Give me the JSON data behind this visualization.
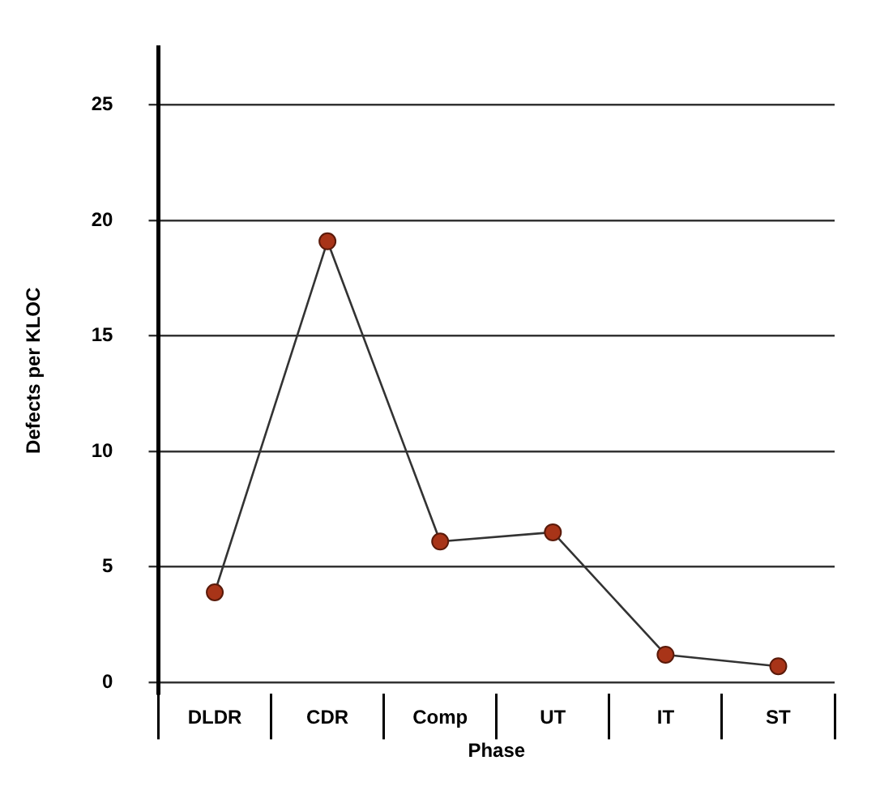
{
  "chart_data": {
    "type": "line",
    "xlabel": "Phase",
    "ylabel": "Defects per KLOC",
    "categories": [
      "DLDR",
      "CDR",
      "Comp",
      "UT",
      "IT",
      "ST"
    ],
    "series": [
      {
        "color": "#a83418",
        "values": [
          3.9,
          19.1,
          6.1,
          6.5,
          1.2,
          0.7
        ]
      }
    ],
    "ylim": [
      -0.5,
      27.5
    ],
    "yticks": [
      0,
      5,
      10,
      15,
      20,
      25
    ],
    "grid": "y",
    "marker": "circle",
    "line_style": "solid",
    "legend": false
  }
}
